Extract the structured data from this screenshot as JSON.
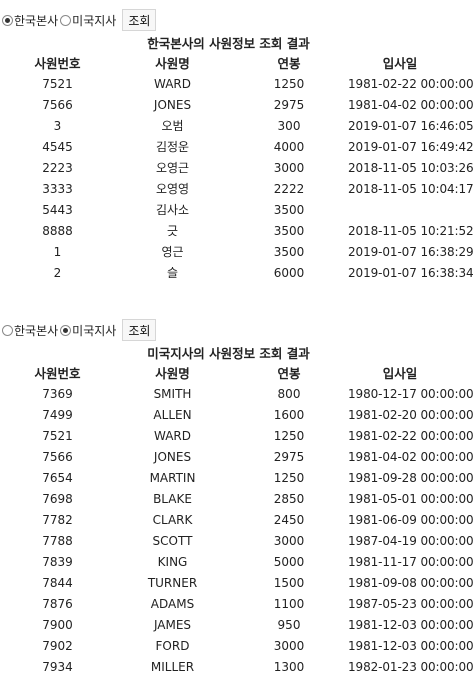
{
  "hq_section": {
    "radio_hq_label": "한국본사",
    "radio_us_label": "미국지사",
    "selected": "hq",
    "button_label": "조회",
    "caption": "한국본사의 사원정보 조회 결과",
    "columns": [
      "사원번호",
      "사원명",
      "연봉",
      "입사일"
    ],
    "rows": [
      [
        "7521",
        "WARD",
        "1250",
        "1981-02-22 00:00:00"
      ],
      [
        "7566",
        "JONES",
        "2975",
        "1981-04-02 00:00:00"
      ],
      [
        "3",
        "오범",
        "300",
        "2019-01-07 16:46:05"
      ],
      [
        "4545",
        "김정운",
        "4000",
        "2019-01-07 16:49:42"
      ],
      [
        "2223",
        "오영근",
        "3000",
        "2018-11-05 10:03:26"
      ],
      [
        "3333",
        "오영영",
        "2222",
        "2018-11-05 10:04:17"
      ],
      [
        "5443",
        "김사소",
        "3500",
        ""
      ],
      [
        "8888",
        "긋",
        "3500",
        "2018-11-05 10:21:52"
      ],
      [
        "1",
        "영근",
        "3500",
        "2019-01-07 16:38:29"
      ],
      [
        "2",
        "슬",
        "6000",
        "2019-01-07 16:38:34"
      ]
    ]
  },
  "us_section": {
    "radio_hq_label": "한국본사",
    "radio_us_label": "미국지사",
    "selected": "us",
    "button_label": "조회",
    "caption": "미국지사의 사원정보 조회 결과",
    "columns": [
      "사원번호",
      "사원명",
      "연봉",
      "입사일"
    ],
    "rows": [
      [
        "7369",
        "SMITH",
        "800",
        "1980-12-17 00:00:00"
      ],
      [
        "7499",
        "ALLEN",
        "1600",
        "1981-02-20 00:00:00"
      ],
      [
        "7521",
        "WARD",
        "1250",
        "1981-02-22 00:00:00"
      ],
      [
        "7566",
        "JONES",
        "2975",
        "1981-04-02 00:00:00"
      ],
      [
        "7654",
        "MARTIN",
        "1250",
        "1981-09-28 00:00:00"
      ],
      [
        "7698",
        "BLAKE",
        "2850",
        "1981-05-01 00:00:00"
      ],
      [
        "7782",
        "CLARK",
        "2450",
        "1981-06-09 00:00:00"
      ],
      [
        "7788",
        "SCOTT",
        "3000",
        "1987-04-19 00:00:00"
      ],
      [
        "7839",
        "KING",
        "5000",
        "1981-11-17 00:00:00"
      ],
      [
        "7844",
        "TURNER",
        "1500",
        "1981-09-08 00:00:00"
      ],
      [
        "7876",
        "ADAMS",
        "1100",
        "1987-05-23 00:00:00"
      ],
      [
        "7900",
        "JAMES",
        "950",
        "1981-12-03 00:00:00"
      ],
      [
        "7902",
        "FORD",
        "3000",
        "1981-12-03 00:00:00"
      ],
      [
        "7934",
        "MILLER",
        "1300",
        "1982-01-23 00:00:00"
      ]
    ]
  }
}
